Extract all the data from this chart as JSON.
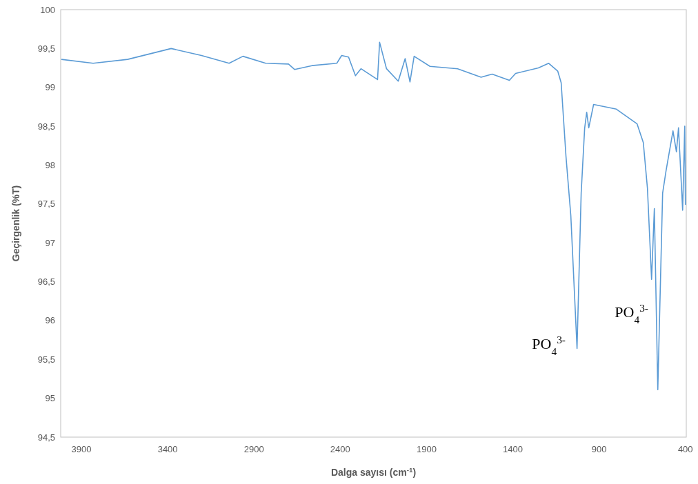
{
  "chart_data": {
    "type": "line",
    "xlabel": "Dalga sayısı (cm$^{-1}$)",
    "ylabel": "Geçirgenlik (%T)",
    "xlim": [
      4020,
      395
    ],
    "xticks": [
      3900,
      3400,
      2900,
      2400,
      1900,
      1400,
      900,
      400
    ],
    "ylim": [
      94.5,
      100
    ],
    "yticks": [
      {
        "value": 94.5,
        "label": "94,5"
      },
      95,
      {
        "value": 95.5,
        "label": "95,5"
      },
      96,
      {
        "value": 96.5,
        "label": "96,5"
      },
      97,
      {
        "value": 97.5,
        "label": "97,5"
      },
      98,
      {
        "value": 98.5,
        "label": "98,5"
      },
      99,
      {
        "value": 99.5,
        "label": "99,5"
      },
      100
    ],
    "grid": false,
    "marker": "none",
    "line_style": "solid",
    "series": [
      {
        "color": "#5b9bd5",
        "x": [
          4016,
          3832,
          3632,
          3380,
          3204,
          3044,
          2964,
          2832,
          2700,
          2664,
          2564,
          2420,
          2392,
          2352,
          2312,
          2280,
          2184,
          2172,
          2132,
          2064,
          2024,
          1996,
          1972,
          1880,
          1720,
          1584,
          1520,
          1420,
          1384,
          1252,
          1192,
          1140,
          1120,
          1092,
          1064,
          1028,
          1004,
          984,
          972,
          960,
          932,
          800,
          680,
          644,
          620,
          596,
          580,
          560,
          532,
          512,
          472,
          452,
          440,
          416,
          404,
          400
        ],
        "values": [
          99.36,
          99.31,
          99.36,
          99.5,
          99.41,
          99.31,
          99.4,
          99.31,
          99.3,
          99.23,
          99.28,
          99.31,
          99.41,
          99.39,
          99.15,
          99.24,
          99.1,
          99.58,
          99.24,
          99.08,
          99.37,
          99.07,
          99.4,
          99.27,
          99.24,
          99.13,
          99.17,
          99.09,
          99.18,
          99.25,
          99.31,
          99.21,
          99.06,
          98.11,
          97.35,
          95.64,
          97.64,
          98.47,
          98.68,
          98.48,
          98.78,
          98.72,
          98.53,
          98.29,
          97.7,
          96.53,
          97.44,
          95.11,
          97.64,
          97.93,
          98.44,
          98.17,
          98.48,
          97.42,
          98.5,
          97.49
        ]
      }
    ],
    "annotations": [
      "PO$_{4}$$^{3-}$",
      "PO$_{4}$$^{3-}$"
    ]
  }
}
